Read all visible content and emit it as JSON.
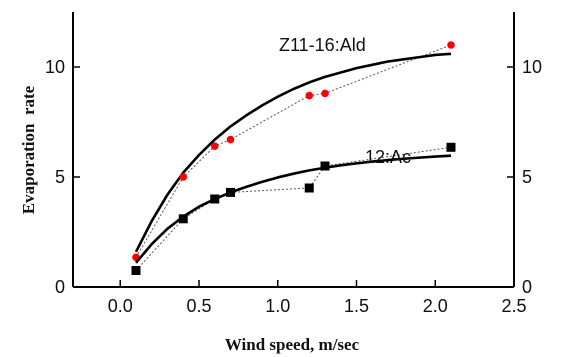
{
  "chart_data": {
    "type": "scatter",
    "xlabel": "Wind speed, m/sec",
    "ylabel": "Evaporation  rate",
    "xlim": [
      -0.3,
      2.5
    ],
    "ylim": [
      0,
      12.5
    ],
    "x_ticks": [
      "0.0",
      "0.5",
      "1.0",
      "1.5",
      "2.0",
      "2.5"
    ],
    "x_tick_values": [
      0,
      0.5,
      1.0,
      1.5,
      2.0,
      2.5
    ],
    "y_ticks": [
      "0",
      "5",
      "10"
    ],
    "y_tick_values": [
      0,
      5,
      10
    ],
    "right_y_ticks": [
      "0",
      "5",
      "10"
    ],
    "grid": false,
    "series": [
      {
        "name": "Z11-16:Ald",
        "marker": "circle",
        "color": "#ff0000",
        "x": [
          0.1,
          0.4,
          0.6,
          0.7,
          1.2,
          1.3,
          2.1
        ],
        "y": [
          1.35,
          5.0,
          6.4,
          6.7,
          8.7,
          8.8,
          11.0
        ],
        "fit": {
          "x": [
            0.1,
            0.2,
            0.3,
            0.4,
            0.5,
            0.6,
            0.7,
            0.8,
            0.9,
            1.0,
            1.1,
            1.2,
            1.3,
            1.4,
            1.5,
            1.6,
            1.7,
            1.8,
            1.9,
            2.0,
            2.1
          ],
          "y": [
            1.6,
            3.0,
            4.2,
            5.2,
            6.0,
            6.7,
            7.3,
            7.8,
            8.25,
            8.65,
            9.0,
            9.3,
            9.55,
            9.75,
            9.95,
            10.1,
            10.25,
            10.35,
            10.45,
            10.55,
            10.6
          ]
        }
      },
      {
        "name": "12:Ac",
        "marker": "square",
        "color": "#000000",
        "x": [
          0.1,
          0.4,
          0.6,
          0.7,
          1.2,
          1.3,
          2.1
        ],
        "y": [
          0.75,
          3.1,
          4.0,
          4.3,
          4.5,
          5.5,
          6.35
        ],
        "fit": {
          "x": [
            0.1,
            0.2,
            0.3,
            0.4,
            0.5,
            0.6,
            0.7,
            0.8,
            0.9,
            1.0,
            1.1,
            1.2,
            1.3,
            1.4,
            1.5,
            1.6,
            1.7,
            1.8,
            1.9,
            2.0,
            2.1
          ],
          "y": [
            1.1,
            1.95,
            2.65,
            3.2,
            3.65,
            4.0,
            4.3,
            4.55,
            4.78,
            4.98,
            5.15,
            5.3,
            5.42,
            5.53,
            5.62,
            5.7,
            5.77,
            5.83,
            5.88,
            5.93,
            5.97
          ]
        }
      }
    ]
  }
}
